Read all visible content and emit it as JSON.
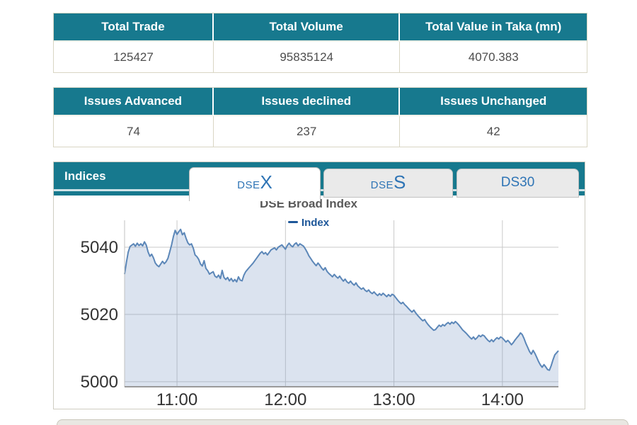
{
  "theme": {
    "teal": "#17798E",
    "tableBorder": "#D9D6C4",
    "tabBlue": "#2E74B5",
    "legendBlue": "#1E5799",
    "titleGray": "#595959",
    "lineBlue": "#5C87B8",
    "fillBlue": "rgba(110,145,190,0.25)",
    "gridGray": "#C9C9C9",
    "axisGray": "#9A9A9A",
    "axisLabel": "#333333"
  },
  "tables": [
    {
      "headers": [
        "Total Trade",
        "Total Volume",
        "Total Value in Taka (mn)"
      ],
      "values": [
        "125427",
        "95835124",
        "4070.383"
      ]
    },
    {
      "headers": [
        "Issues Advanced",
        "Issues declined",
        "Issues Unchanged"
      ],
      "values": [
        "74",
        "237",
        "42"
      ]
    }
  ],
  "indices": {
    "panel_title": "Indices",
    "tabs": [
      {
        "name": "DSEX",
        "prefix": "DSE",
        "suffix": "X",
        "single": "",
        "active": true
      },
      {
        "name": "DSES",
        "prefix": "DSE",
        "suffix": "S",
        "single": "",
        "active": false
      },
      {
        "name": "DS30",
        "prefix": "",
        "suffix": "",
        "single": "DS30",
        "active": false
      }
    ]
  },
  "chart_data": {
    "type": "area",
    "title": "DSE Broad Index",
    "legend": [
      "Index"
    ],
    "x_ticks": [
      "11:00",
      "12:00",
      "13:00",
      "14:00"
    ],
    "x_tick_minutes_after_1030": [
      30,
      90,
      150,
      210
    ],
    "x_range_minutes_after_1030": [
      1,
      241
    ],
    "y_ticks": [
      5000,
      5020,
      5040
    ],
    "ylim": [
      4998.5,
      5048.0
    ],
    "grid": true,
    "legend_position": "top-center",
    "points_minutes_value": [
      [
        1,
        5032.0
      ],
      [
        2,
        5035.5
      ],
      [
        3,
        5038.5
      ],
      [
        4,
        5040.2
      ],
      [
        5,
        5040.6
      ],
      [
        6,
        5041.0
      ],
      [
        7,
        5040.3
      ],
      [
        8,
        5041.2
      ],
      [
        9,
        5040.5
      ],
      [
        10,
        5041.0
      ],
      [
        11,
        5040.4
      ],
      [
        12,
        5041.6
      ],
      [
        13,
        5040.6
      ],
      [
        14,
        5038.6
      ],
      [
        15,
        5037.3
      ],
      [
        16,
        5037.9
      ],
      [
        17,
        5036.8
      ],
      [
        18,
        5035.3
      ],
      [
        19,
        5034.6
      ],
      [
        20,
        5034.2
      ],
      [
        21,
        5035.0
      ],
      [
        22,
        5035.8
      ],
      [
        23,
        5035.1
      ],
      [
        24,
        5035.7
      ],
      [
        25,
        5036.7
      ],
      [
        26,
        5038.7
      ],
      [
        27,
        5040.7
      ],
      [
        28,
        5043.2
      ],
      [
        29,
        5045.0
      ],
      [
        30,
        5043.8
      ],
      [
        31,
        5044.6
      ],
      [
        32,
        5045.3
      ],
      [
        33,
        5043.7
      ],
      [
        34,
        5044.3
      ],
      [
        35,
        5042.7
      ],
      [
        36,
        5041.3
      ],
      [
        37,
        5040.7
      ],
      [
        38,
        5041.0
      ],
      [
        39,
        5039.7
      ],
      [
        40,
        5037.7
      ],
      [
        41,
        5037.2
      ],
      [
        42,
        5036.4
      ],
      [
        43,
        5035.0
      ],
      [
        44,
        5034.4
      ],
      [
        45,
        5036.0
      ],
      [
        46,
        5033.7
      ],
      [
        47,
        5033.0
      ],
      [
        48,
        5032.0
      ],
      [
        49,
        5032.4
      ],
      [
        50,
        5032.7
      ],
      [
        51,
        5031.4
      ],
      [
        52,
        5031.0
      ],
      [
        53,
        5031.7
      ],
      [
        54,
        5030.7
      ],
      [
        55,
        5033.1
      ],
      [
        56,
        5031.0
      ],
      [
        57,
        5030.4
      ],
      [
        58,
        5031.0
      ],
      [
        59,
        5030.0
      ],
      [
        60,
        5030.7
      ],
      [
        61,
        5029.8
      ],
      [
        62,
        5030.4
      ],
      [
        63,
        5029.7
      ],
      [
        64,
        5031.2
      ],
      [
        65,
        5030.2
      ],
      [
        66,
        5030.0
      ],
      [
        67,
        5031.7
      ],
      [
        68,
        5032.7
      ],
      [
        70,
        5034.0
      ],
      [
        72,
        5035.2
      ],
      [
        74,
        5036.7
      ],
      [
        76,
        5038.2
      ],
      [
        77,
        5038.7
      ],
      [
        78,
        5038.0
      ],
      [
        79,
        5038.4
      ],
      [
        80,
        5037.7
      ],
      [
        82,
        5039.2
      ],
      [
        84,
        5039.8
      ],
      [
        85,
        5039.2
      ],
      [
        86,
        5040.0
      ],
      [
        88,
        5040.7
      ],
      [
        90,
        5039.4
      ],
      [
        91,
        5040.5
      ],
      [
        92,
        5041.2
      ],
      [
        93,
        5040.5
      ],
      [
        94,
        5040.1
      ],
      [
        95,
        5040.9
      ],
      [
        96,
        5041.3
      ],
      [
        97,
        5040.4
      ],
      [
        98,
        5041.0
      ],
      [
        100,
        5040.3
      ],
      [
        101,
        5039.5
      ],
      [
        102,
        5038.5
      ],
      [
        103,
        5037.4
      ],
      [
        104,
        5036.6
      ],
      [
        105,
        5035.8
      ],
      [
        106,
        5035.1
      ],
      [
        107,
        5034.5
      ],
      [
        108,
        5035.3
      ],
      [
        109,
        5034.6
      ],
      [
        110,
        5033.8
      ],
      [
        111,
        5033.2
      ],
      [
        112,
        5033.9
      ],
      [
        113,
        5032.8
      ],
      [
        114,
        5032.2
      ],
      [
        115,
        5031.7
      ],
      [
        116,
        5031.2
      ],
      [
        117,
        5031.9
      ],
      [
        118,
        5031.3
      ],
      [
        119,
        5030.8
      ],
      [
        120,
        5031.4
      ],
      [
        121,
        5030.6
      ],
      [
        122,
        5029.9
      ],
      [
        123,
        5030.5
      ],
      [
        124,
        5029.7
      ],
      [
        125,
        5029.3
      ],
      [
        126,
        5029.9
      ],
      [
        127,
        5029.2
      ],
      [
        128,
        5028.7
      ],
      [
        129,
        5029.4
      ],
      [
        130,
        5028.5
      ],
      [
        131,
        5028.0
      ],
      [
        132,
        5027.5
      ],
      [
        133,
        5027.9
      ],
      [
        134,
        5027.2
      ],
      [
        135,
        5026.8
      ],
      [
        136,
        5027.3
      ],
      [
        137,
        5026.6
      ],
      [
        138,
        5026.2
      ],
      [
        139,
        5026.7
      ],
      [
        140,
        5026.1
      ],
      [
        141,
        5025.6
      ],
      [
        142,
        5026.2
      ],
      [
        143,
        5025.7
      ],
      [
        144,
        5026.3
      ],
      [
        145,
        5025.8
      ],
      [
        146,
        5025.3
      ],
      [
        147,
        5025.9
      ],
      [
        148,
        5025.4
      ],
      [
        149,
        5026.0
      ],
      [
        150,
        5025.7
      ],
      [
        151,
        5025.0
      ],
      [
        152,
        5024.3
      ],
      [
        153,
        5023.7
      ],
      [
        154,
        5023.2
      ],
      [
        155,
        5023.6
      ],
      [
        156,
        5022.9
      ],
      [
        157,
        5022.4
      ],
      [
        158,
        5021.8
      ],
      [
        159,
        5021.2
      ],
      [
        160,
        5020.7
      ],
      [
        161,
        5021.3
      ],
      [
        162,
        5020.5
      ],
      [
        163,
        5019.8
      ],
      [
        164,
        5019.2
      ],
      [
        165,
        5018.6
      ],
      [
        166,
        5018.1
      ],
      [
        167,
        5018.5
      ],
      [
        168,
        5017.6
      ],
      [
        169,
        5016.9
      ],
      [
        170,
        5016.3
      ],
      [
        171,
        5015.8
      ],
      [
        172,
        5015.3
      ],
      [
        173,
        5015.5
      ],
      [
        174,
        5016.2
      ],
      [
        175,
        5016.8
      ],
      [
        176,
        5016.4
      ],
      [
        177,
        5017.0
      ],
      [
        178,
        5016.6
      ],
      [
        179,
        5017.2
      ],
      [
        180,
        5017.6
      ],
      [
        181,
        5017.1
      ],
      [
        182,
        5017.7
      ],
      [
        183,
        5017.3
      ],
      [
        184,
        5017.9
      ],
      [
        185,
        5017.4
      ],
      [
        186,
        5016.8
      ],
      [
        187,
        5016.1
      ],
      [
        188,
        5015.4
      ],
      [
        189,
        5014.9
      ],
      [
        190,
        5014.4
      ],
      [
        191,
        5013.8
      ],
      [
        192,
        5013.2
      ],
      [
        193,
        5012.7
      ],
      [
        194,
        5013.3
      ],
      [
        195,
        5012.6
      ],
      [
        196,
        5013.1
      ],
      [
        197,
        5013.8
      ],
      [
        198,
        5013.4
      ],
      [
        199,
        5013.9
      ],
      [
        200,
        5013.6
      ],
      [
        201,
        5012.9
      ],
      [
        202,
        5012.3
      ],
      [
        203,
        5011.9
      ],
      [
        204,
        5012.5
      ],
      [
        205,
        5011.9
      ],
      [
        206,
        5012.6
      ],
      [
        207,
        5013.1
      ],
      [
        208,
        5012.7
      ],
      [
        209,
        5013.3
      ],
      [
        210,
        5013.0
      ],
      [
        211,
        5012.4
      ],
      [
        212,
        5011.8
      ],
      [
        213,
        5012.3
      ],
      [
        214,
        5011.7
      ],
      [
        215,
        5011.0
      ],
      [
        216,
        5011.6
      ],
      [
        217,
        5012.4
      ],
      [
        218,
        5013.1
      ],
      [
        219,
        5013.7
      ],
      [
        220,
        5014.5
      ],
      [
        221,
        5014.0
      ],
      [
        222,
        5012.8
      ],
      [
        223,
        5011.4
      ],
      [
        224,
        5010.2
      ],
      [
        225,
        5009.0
      ],
      [
        226,
        5008.2
      ],
      [
        227,
        5009.3
      ],
      [
        228,
        5008.4
      ],
      [
        229,
        5007.2
      ],
      [
        230,
        5006.0
      ],
      [
        231,
        5005.0
      ],
      [
        232,
        5004.3
      ],
      [
        233,
        5005.1
      ],
      [
        234,
        5004.4
      ],
      [
        235,
        5003.6
      ],
      [
        236,
        5003.4
      ],
      [
        237,
        5004.8
      ],
      [
        238,
        5006.5
      ],
      [
        239,
        5008.0
      ],
      [
        240,
        5008.6
      ],
      [
        241,
        5009.2
      ]
    ]
  }
}
